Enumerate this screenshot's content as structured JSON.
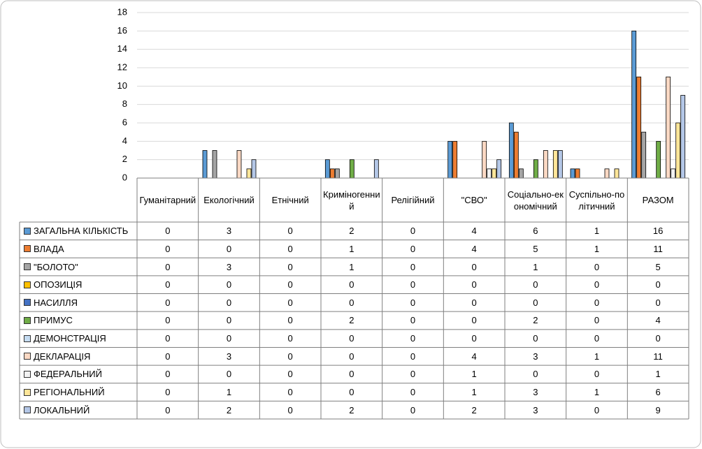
{
  "chart_data": {
    "type": "bar",
    "categories": [
      "Гуманітарний",
      "Екологічний",
      "Етнічний",
      "Криміногенний",
      "Релігійний",
      "\"СВО\"",
      "Соціально-економічний",
      "Суспільно-політичний",
      "РАЗОМ"
    ],
    "series": [
      {
        "name": "ЗАГАЛЬНА КІЛЬКІСТЬ",
        "color": "#5b9bd5",
        "values": [
          0,
          3,
          0,
          2,
          0,
          4,
          6,
          1,
          16
        ]
      },
      {
        "name": "ВЛАДА",
        "color": "#ed7d31",
        "values": [
          0,
          0,
          0,
          1,
          0,
          4,
          5,
          1,
          11
        ]
      },
      {
        "name": "\"БОЛОТО\"",
        "color": "#a5a5a5",
        "values": [
          0,
          3,
          0,
          1,
          0,
          0,
          1,
          0,
          5
        ]
      },
      {
        "name": "ОПОЗИЦІЯ",
        "color": "#ffc000",
        "values": [
          0,
          0,
          0,
          0,
          0,
          0,
          0,
          0,
          0
        ]
      },
      {
        "name": "НАСИЛЛЯ",
        "color": "#4472c4",
        "values": [
          0,
          0,
          0,
          0,
          0,
          0,
          0,
          0,
          0
        ]
      },
      {
        "name": "ПРИМУС",
        "color": "#70ad47",
        "values": [
          0,
          0,
          0,
          2,
          0,
          0,
          2,
          0,
          4
        ]
      },
      {
        "name": "ДЕМОНСТРАЦІЯ",
        "color": "#c5dcf2",
        "values": [
          0,
          0,
          0,
          0,
          0,
          0,
          0,
          0,
          0
        ]
      },
      {
        "name": "ДЕКЛАРАЦІЯ",
        "color": "#fbd9c4",
        "values": [
          0,
          3,
          0,
          0,
          0,
          4,
          3,
          1,
          11
        ]
      },
      {
        "name": "ФЕДЕРАЛЬНИЙ",
        "color": "#f2f2f2",
        "values": [
          0,
          0,
          0,
          0,
          0,
          1,
          0,
          0,
          1
        ]
      },
      {
        "name": "РЕГІОНАЛЬНИЙ",
        "color": "#ffe699",
        "values": [
          0,
          1,
          0,
          0,
          0,
          1,
          3,
          1,
          6
        ]
      },
      {
        "name": "ЛОКАЛЬНИЙ",
        "color": "#b4c7e7",
        "values": [
          0,
          2,
          0,
          2,
          0,
          2,
          3,
          0,
          9
        ]
      }
    ],
    "ylim": [
      0,
      18
    ],
    "yticks": [
      0,
      2,
      4,
      6,
      8,
      10,
      12,
      14,
      16,
      18
    ],
    "grid": true
  }
}
